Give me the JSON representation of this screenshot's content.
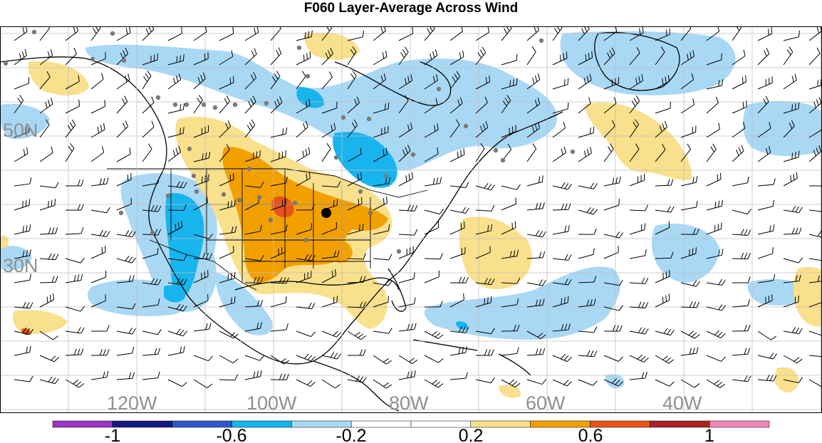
{
  "title": "F060 Layer-Average Across Wind",
  "lat_labels": [
    "50N",
    "30N"
  ],
  "lon_labels": [
    "120W",
    "100W",
    "80W",
    "60W",
    "40W"
  ],
  "colorbar": {
    "colors": [
      "#9a35c7",
      "#151a82",
      "#2f58c9",
      "#18b4ee",
      "#a9d8f5",
      "#ffffff",
      "#ffffff",
      "#f9e08c",
      "#f2a000",
      "#ea5318",
      "#ab2323",
      "#f288b9"
    ],
    "tick_labels": [
      "-1",
      "-0.6",
      "-0.2",
      "0.2",
      "0.6",
      "1"
    ]
  },
  "shading_colors": {
    "light_blue": "#a9d8f5",
    "blue": "#18b4ee",
    "light_yellow": "#f9e08c",
    "orange": "#f2a000",
    "red_orange": "#ea5318"
  },
  "markers": {
    "station_dot_color": "#7a7a7a",
    "highlight_dot_color": "#000000"
  }
}
